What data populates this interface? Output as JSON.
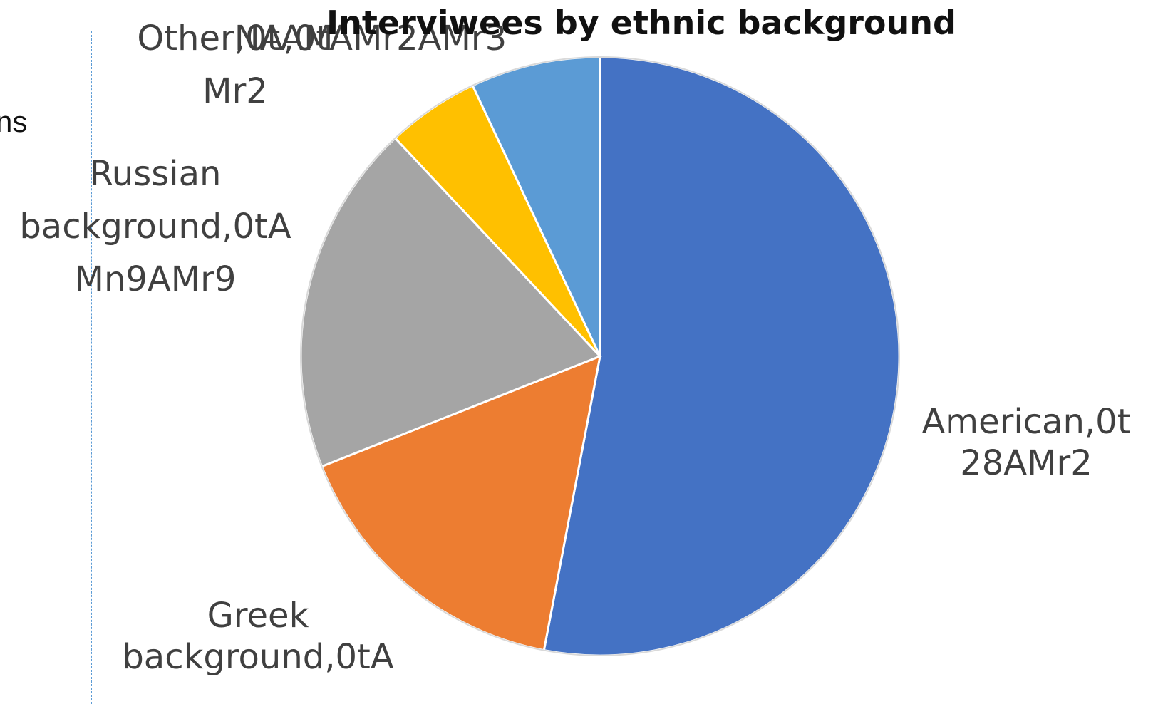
{
  "side_text": "ns",
  "chart_data": {
    "type": "pie",
    "title": "Interviwees by ethnic background",
    "slices": [
      {
        "label": [
          "American,0t",
          "28AMr2"
        ],
        "value": 53,
        "color": "#4472c4"
      },
      {
        "label": [
          "Greek",
          "background,0tA"
        ],
        "value": 16,
        "color": "#ed7d31"
      },
      {
        "label": [
          "Russian",
          "background,0tA",
          "Mn9AMr9"
        ],
        "value": 19,
        "color": "#a5a5a5"
      },
      {
        "label": [
          "NA,0tAMr2AMr3"
        ],
        "value": 5,
        "color": "#ffc000"
      },
      {
        "label": [
          "Other,0tAM",
          "Mr2"
        ],
        "value": 7,
        "color": "#5b9bd5"
      }
    ],
    "legend": "none",
    "start_angle_deg": 0,
    "direction": "clockwise"
  }
}
